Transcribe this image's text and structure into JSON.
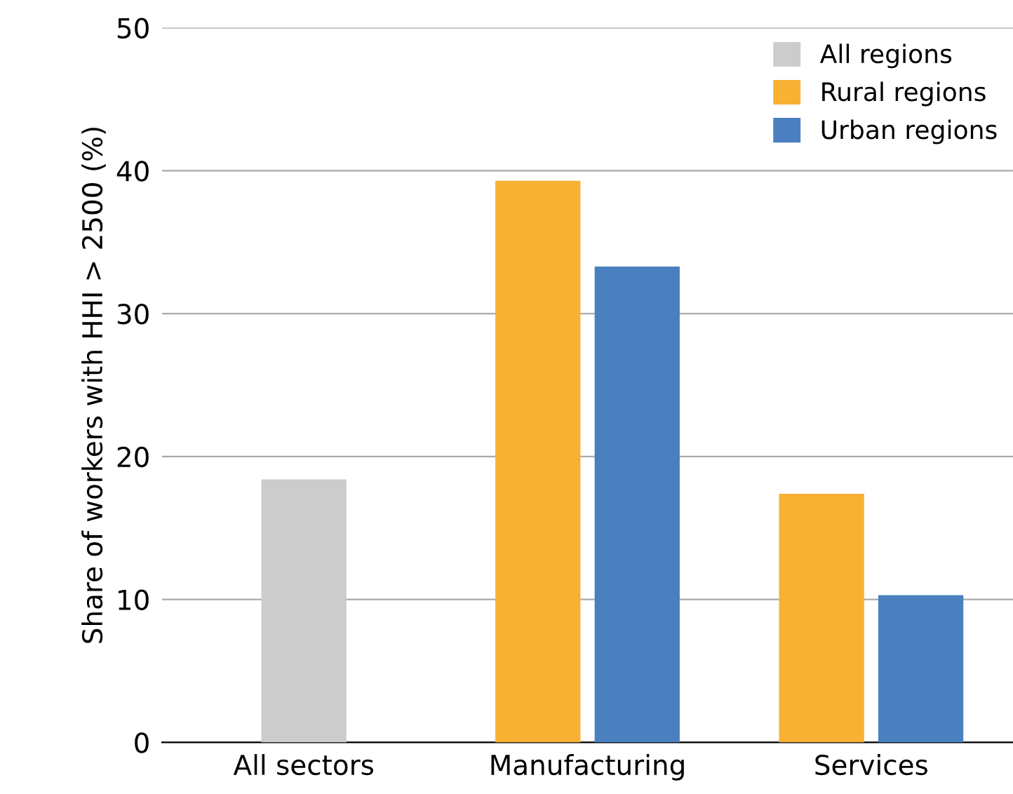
{
  "chart_data": {
    "type": "bar",
    "ylabel": "Share of workers with HHI > 2500 (%)",
    "categories": [
      "All sectors",
      "Manufacturing",
      "Services"
    ],
    "series": [
      {
        "name": "All regions",
        "color": "#cccccc",
        "values": [
          18.4,
          null,
          null
        ]
      },
      {
        "name": "Rural regions",
        "color": "#f8b133",
        "values": [
          null,
          39.3,
          17.4
        ]
      },
      {
        "name": "Urban regions",
        "color": "#4b80c0",
        "values": [
          null,
          33.3,
          10.3
        ]
      }
    ],
    "ylim": [
      0,
      50
    ],
    "yticks": [
      0,
      10,
      20,
      30,
      40,
      50
    ],
    "grid": "y",
    "legend": "top right"
  }
}
